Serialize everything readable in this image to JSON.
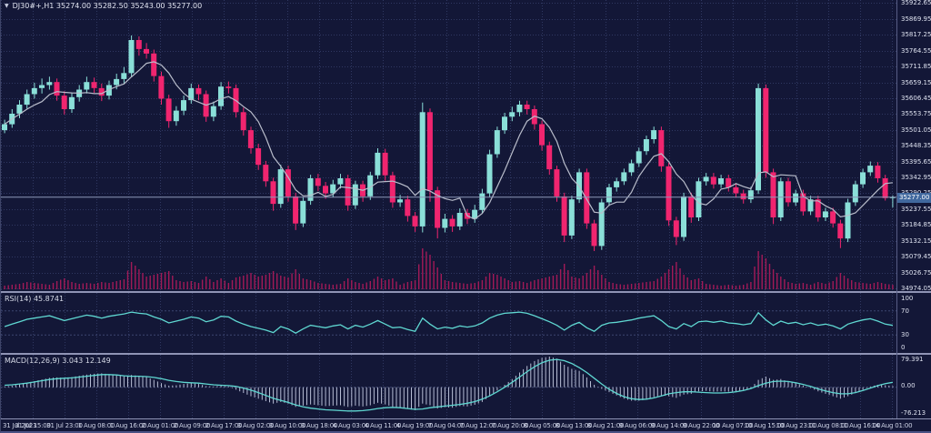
{
  "window_title": "DJ30#+,H1 chart",
  "colors": {
    "bg": "#131737",
    "grid": "#303862",
    "bull": "#8adfd8",
    "bear": "#f0256f",
    "ma": "#b9bdcb",
    "volume": "#a21a57",
    "indicator_line": "#5fd7d1",
    "macd_hist": "#b6bcd4",
    "axis_text": "#dde1ef",
    "price_tag_bg": "#40689e",
    "separator": "#8f94b5",
    "current_price_line": "#8c98b8"
  },
  "symbol_bar": {
    "dropdown_icon": "▼",
    "text": "DJ30#+,H1  35274.00 35282.50 35243.00 35277.00"
  },
  "main_panel": {
    "price_axis": {
      "labels": [
        "35922.65",
        "35869.95",
        "35817.25",
        "35764.55",
        "35711.85",
        "35659.15",
        "35606.45",
        "35553.75",
        "35501.05",
        "35448.35",
        "35395.65",
        "35342.95",
        "35290.25",
        "35237.55",
        "35184.85",
        "35132.15",
        "35079.45",
        "35026.75",
        "34974.05"
      ]
    },
    "current_price": "35277.00",
    "current_price_value": 35277.0
  },
  "rsi_panel": {
    "label": "RSI(14) 45.8741",
    "axis": [
      "100",
      "70",
      "30",
      "0"
    ],
    "upper_level": 70,
    "lower_level": 30
  },
  "macd_panel": {
    "label": "MACD(12,26,9) 3.043 12.149",
    "axis": [
      "79.391",
      "0.00",
      "-76.213"
    ]
  },
  "time_axis": {
    "labels": [
      "31 Jul 2023",
      "31 Jul 15:00",
      "31 Jul 23:00",
      "1 Aug 08:00",
      "1 Aug 16:00",
      "2 Aug 01:00",
      "2 Aug 09:00",
      "2 Aug 17:00",
      "3 Aug 02:00",
      "3 Aug 10:00",
      "3 Aug 18:00",
      "4 Aug 03:00",
      "4 Aug 11:00",
      "4 Aug 19:00",
      "7 Aug 04:00",
      "7 Aug 12:00",
      "7 Aug 20:00",
      "8 Aug 05:00",
      "8 Aug 13:00",
      "8 Aug 21:00",
      "9 Aug 06:00",
      "9 Aug 14:00",
      "9 Aug 22:00",
      "10 Aug 07:00",
      "10 Aug 15:00",
      "10 Aug 23:00",
      "11 Aug 08:00",
      "11 Aug 16:00",
      "14 Aug 01:00"
    ]
  },
  "chart_data": {
    "type": "candlestick",
    "symbol": "DJ30#+",
    "timeframe": "H1",
    "title": "DJ30#+,H1 with RSI(14) and MACD(12,26,9)",
    "price_range": [
      34971,
      35933
    ],
    "rsi_range": [
      0,
      100
    ],
    "macd_range": [
      -76.213,
      79.391
    ],
    "legend": [
      "candles",
      "moving-average",
      "volume",
      "RSI",
      "MACD histogram",
      "MACD signal"
    ],
    "ohlc": [
      [
        35500,
        35535,
        35490,
        35520
      ],
      [
        35520,
        35570,
        35508,
        35555
      ],
      [
        35555,
        35600,
        35540,
        35585
      ],
      [
        35585,
        35635,
        35572,
        35620
      ],
      [
        35620,
        35658,
        35605,
        35640
      ],
      [
        35640,
        35672,
        35622,
        35650
      ],
      [
        35650,
        35678,
        35635,
        35660
      ],
      [
        35660,
        35672,
        35598,
        35615
      ],
      [
        35615,
        35630,
        35552,
        35570
      ],
      [
        35570,
        35625,
        35558,
        35610
      ],
      [
        35610,
        35650,
        35595,
        35635
      ],
      [
        35635,
        35678,
        35622,
        35660
      ],
      [
        35660,
        35675,
        35624,
        35640
      ],
      [
        35640,
        35655,
        35597,
        35615
      ],
      [
        35615,
        35665,
        35602,
        35650
      ],
      [
        35650,
        35688,
        35636,
        35670
      ],
      [
        35670,
        35710,
        35655,
        35690
      ],
      [
        35690,
        35815,
        35678,
        35800
      ],
      [
        35800,
        35812,
        35748,
        35770
      ],
      [
        35770,
        35790,
        35738,
        35755
      ],
      [
        35755,
        35768,
        35662,
        35680
      ],
      [
        35680,
        35695,
        35585,
        35605
      ],
      [
        35605,
        35618,
        35508,
        35530
      ],
      [
        35530,
        35580,
        35515,
        35565
      ],
      [
        35565,
        35615,
        35550,
        35600
      ],
      [
        35600,
        35655,
        35588,
        35640
      ],
      [
        35640,
        35652,
        35600,
        35620
      ],
      [
        35620,
        35632,
        35528,
        35545
      ],
      [
        35545,
        35595,
        35530,
        35580
      ],
      [
        35580,
        35660,
        35568,
        35645
      ],
      [
        35645,
        35662,
        35622,
        35640
      ],
      [
        35640,
        35652,
        35542,
        35560
      ],
      [
        35560,
        35575,
        35482,
        35500
      ],
      [
        35500,
        35512,
        35422,
        35440
      ],
      [
        35440,
        35455,
        35368,
        35385
      ],
      [
        35385,
        35398,
        35312,
        35330
      ],
      [
        35330,
        35342,
        35232,
        35255
      ],
      [
        35255,
        35385,
        35242,
        35370
      ],
      [
        35370,
        35382,
        35262,
        35280
      ],
      [
        35280,
        35292,
        35168,
        35190
      ],
      [
        35190,
        35278,
        35178,
        35265
      ],
      [
        35265,
        35352,
        35252,
        35340
      ],
      [
        35340,
        35355,
        35298,
        35315
      ],
      [
        35315,
        35328,
        35272,
        35290
      ],
      [
        35290,
        35335,
        35278,
        35320
      ],
      [
        35320,
        35355,
        35306,
        35340
      ],
      [
        35340,
        35352,
        35232,
        35250
      ],
      [
        35250,
        35332,
        35238,
        35320
      ],
      [
        35320,
        35332,
        35262,
        35280
      ],
      [
        35280,
        35362,
        35268,
        35350
      ],
      [
        35350,
        35440,
        35338,
        35425
      ],
      [
        35425,
        35438,
        35332,
        35350
      ],
      [
        35350,
        35362,
        35242,
        35260
      ],
      [
        35260,
        35285,
        35245,
        35270
      ],
      [
        35270,
        35282,
        35196,
        35215
      ],
      [
        35215,
        35228,
        35162,
        35180
      ],
      [
        35180,
        35592,
        35160,
        35560
      ],
      [
        35560,
        35572,
        35262,
        35300
      ],
      [
        35300,
        35312,
        35140,
        35175
      ],
      [
        35175,
        35222,
        35160,
        35205
      ],
      [
        35205,
        35218,
        35162,
        35180
      ],
      [
        35180,
        35240,
        35168,
        35225
      ],
      [
        35225,
        35238,
        35188,
        35205
      ],
      [
        35205,
        35252,
        35192,
        35235
      ],
      [
        35235,
        35305,
        35222,
        35290
      ],
      [
        35290,
        35435,
        35278,
        35420
      ],
      [
        35420,
        35512,
        35408,
        35500
      ],
      [
        35500,
        35558,
        35488,
        35545
      ],
      [
        35545,
        35578,
        35530,
        35560
      ],
      [
        35560,
        35598,
        35546,
        35585
      ],
      [
        35585,
        35598,
        35552,
        35570
      ],
      [
        35570,
        35582,
        35502,
        35520
      ],
      [
        35520,
        35532,
        35432,
        35450
      ],
      [
        35450,
        35462,
        35352,
        35370
      ],
      [
        35370,
        35382,
        35262,
        35280
      ],
      [
        35280,
        35292,
        35128,
        35150
      ],
      [
        35150,
        35282,
        35138,
        35270
      ],
      [
        35270,
        35372,
        35258,
        35360
      ],
      [
        35360,
        35372,
        35172,
        35190
      ],
      [
        35190,
        35202,
        35098,
        35115
      ],
      [
        35115,
        35272,
        35102,
        35260
      ],
      [
        35260,
        35322,
        35248,
        35310
      ],
      [
        35310,
        35342,
        35296,
        35330
      ],
      [
        35330,
        35372,
        35318,
        35360
      ],
      [
        35360,
        35402,
        35348,
        35390
      ],
      [
        35390,
        35442,
        35378,
        35430
      ],
      [
        35430,
        35482,
        35418,
        35470
      ],
      [
        35470,
        35512,
        35456,
        35500
      ],
      [
        35500,
        35512,
        35362,
        35380
      ],
      [
        35380,
        35392,
        35182,
        35200
      ],
      [
        35200,
        35212,
        35118,
        35145
      ],
      [
        35145,
        35292,
        35132,
        35280
      ],
      [
        35280,
        35292,
        35192,
        35210
      ],
      [
        35210,
        35342,
        35198,
        35330
      ],
      [
        35330,
        35358,
        35316,
        35345
      ],
      [
        35345,
        35358,
        35306,
        35320
      ],
      [
        35320,
        35352,
        35308,
        35340
      ],
      [
        35340,
        35352,
        35296,
        35310
      ],
      [
        35310,
        35322,
        35276,
        35290
      ],
      [
        35290,
        35302,
        35256,
        35270
      ],
      [
        35270,
        35312,
        35258,
        35300
      ],
      [
        35300,
        35655,
        35288,
        35640
      ],
      [
        35640,
        35652,
        35342,
        35360
      ],
      [
        35360,
        35372,
        35188,
        35210
      ],
      [
        35210,
        35342,
        35198,
        35330
      ],
      [
        35330,
        35342,
        35246,
        35260
      ],
      [
        35260,
        35302,
        35248,
        35290
      ],
      [
        35290,
        35302,
        35216,
        35230
      ],
      [
        35230,
        35282,
        35218,
        35270
      ],
      [
        35270,
        35282,
        35196,
        35210
      ],
      [
        35210,
        35242,
        35198,
        35230
      ],
      [
        35230,
        35242,
        35176,
        35190
      ],
      [
        35190,
        35202,
        35108,
        35140
      ],
      [
        35140,
        35272,
        35128,
        35260
      ],
      [
        35260,
        35332,
        35248,
        35320
      ],
      [
        35320,
        35372,
        35308,
        35360
      ],
      [
        35360,
        35396,
        35348,
        35382
      ],
      [
        35382,
        35394,
        35326,
        35340
      ],
      [
        35340,
        35352,
        35266,
        35274
      ],
      [
        35274,
        35283,
        35243,
        35277
      ]
    ],
    "volume": [
      4,
      5,
      6,
      8,
      7,
      6,
      5,
      9,
      12,
      8,
      6,
      7,
      6,
      8,
      7,
      9,
      11,
      30,
      22,
      14,
      16,
      18,
      20,
      10,
      8,
      9,
      7,
      14,
      8,
      12,
      7,
      13,
      15,
      18,
      14,
      16,
      20,
      15,
      13,
      22,
      12,
      10,
      7,
      6,
      5,
      6,
      12,
      8,
      6,
      9,
      14,
      10,
      12,
      5,
      8,
      10,
      45,
      38,
      24,
      10,
      8,
      7,
      6,
      7,
      10,
      18,
      16,
      12,
      8,
      9,
      7,
      10,
      12,
      14,
      16,
      28,
      14,
      12,
      18,
      26,
      16,
      8,
      6,
      5,
      6,
      7,
      8,
      9,
      14,
      22,
      30,
      16,
      10,
      12,
      6,
      5,
      4,
      5,
      4,
      5,
      8,
      42,
      34,
      22,
      14,
      8,
      6,
      7,
      5,
      8,
      6,
      9,
      18,
      12,
      8,
      7,
      6,
      8,
      6,
      5
    ],
    "rsi": [
      44,
      48,
      52,
      56,
      58,
      60,
      62,
      58,
      54,
      57,
      60,
      63,
      61,
      58,
      61,
      63,
      65,
      68,
      66,
      65,
      60,
      56,
      50,
      53,
      56,
      60,
      58,
      52,
      55,
      61,
      60,
      53,
      48,
      44,
      41,
      38,
      34,
      44,
      40,
      33,
      40,
      46,
      44,
      42,
      45,
      47,
      40,
      46,
      43,
      48,
      54,
      48,
      42,
      43,
      39,
      36,
      58,
      48,
      40,
      43,
      41,
      45,
      43,
      45,
      50,
      58,
      63,
      66,
      67,
      68,
      66,
      62,
      57,
      52,
      46,
      38,
      46,
      51,
      42,
      36,
      46,
      50,
      51,
      53,
      55,
      58,
      60,
      62,
      54,
      44,
      40,
      49,
      44,
      52,
      53,
      51,
      53,
      50,
      49,
      47,
      49,
      67,
      55,
      46,
      53,
      49,
      51,
      47,
      50,
      46,
      48,
      45,
      40,
      48,
      52,
      55,
      57,
      53,
      48,
      45.9
    ],
    "macd_signal": [
      5,
      6,
      8,
      10,
      13,
      16,
      19,
      21,
      22,
      23,
      25,
      27,
      29,
      31,
      31,
      30,
      28,
      27,
      27,
      26,
      24,
      21,
      17,
      14,
      12,
      11,
      10,
      8,
      6,
      5,
      4,
      2,
      -2,
      -7,
      -13,
      -20,
      -27,
      -32,
      -37,
      -43,
      -48,
      -51,
      -53,
      -55,
      -56,
      -57,
      -58,
      -58,
      -57,
      -55,
      -52,
      -50,
      -49,
      -50,
      -52,
      -54,
      -53,
      -50,
      -48,
      -46,
      -44,
      -42,
      -39,
      -35,
      -29,
      -21,
      -11,
      0,
      12,
      25,
      38,
      50,
      60,
      66,
      68,
      65,
      58,
      48,
      36,
      22,
      8,
      -5,
      -15,
      -23,
      -28,
      -30,
      -29,
      -26,
      -21,
      -16,
      -13,
      -11,
      -11,
      -12,
      -13,
      -14,
      -14,
      -13,
      -11,
      -8,
      -3,
      4,
      10,
      14,
      15,
      14,
      11,
      7,
      2,
      -4,
      -9,
      -13,
      -16,
      -16,
      -13,
      -8,
      -2,
      4,
      9,
      12.1
    ],
    "macd_hist": [
      2,
      4,
      7,
      11,
      15,
      19,
      23,
      24,
      23,
      25,
      28,
      31,
      33,
      34,
      32,
      29,
      27,
      30,
      28,
      25,
      18,
      10,
      4,
      5,
      8,
      10,
      8,
      3,
      2,
      4,
      2,
      -6,
      -14,
      -22,
      -28,
      -34,
      -40,
      -36,
      -40,
      -48,
      -45,
      -42,
      -44,
      -46,
      -45,
      -44,
      -48,
      -45,
      -47,
      -44,
      -38,
      -42,
      -48,
      -49,
      -53,
      -56,
      -40,
      -44,
      -52,
      -49,
      -50,
      -46,
      -47,
      -43,
      -36,
      -22,
      -8,
      6,
      20,
      36,
      52,
      64,
      72,
      75,
      70,
      55,
      45,
      40,
      24,
      6,
      -4,
      -12,
      -20,
      -28,
      -33,
      -33,
      -30,
      -24,
      -20,
      -22,
      -26,
      -18,
      -16,
      -10,
      -9,
      -11,
      -10,
      -11,
      -10,
      -7,
      -2,
      18,
      26,
      18,
      20,
      14,
      10,
      4,
      -2,
      -10,
      -16,
      -22,
      -28,
      -22,
      -14,
      -6,
      2,
      6,
      5,
      3
    ]
  }
}
